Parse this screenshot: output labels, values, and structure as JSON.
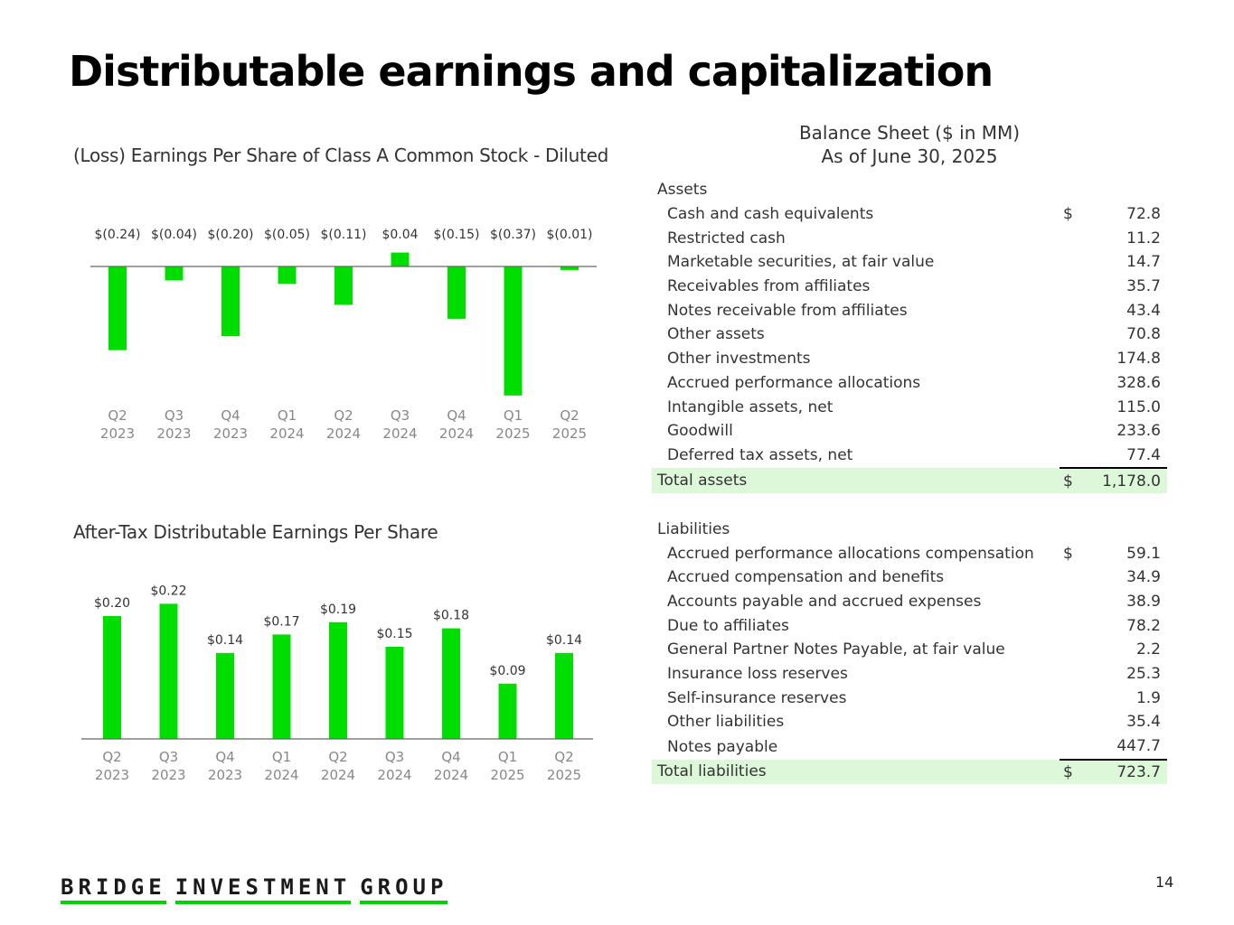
{
  "page": {
    "title": "Distributable earnings and capitalization",
    "page_number": "14",
    "logo_words": [
      "BRIDGE",
      "INVESTMENT",
      "GROUP"
    ]
  },
  "colors": {
    "bar": "#00dd00",
    "axis": "#666666",
    "total_bg": "#ddf7d9"
  },
  "chart_data": [
    {
      "type": "bar",
      "title": "(Loss) Earnings Per Share of Class A Common Stock - Diluted",
      "categories": [
        [
          "Q2",
          "2023"
        ],
        [
          "Q3",
          "2023"
        ],
        [
          "Q4",
          "2023"
        ],
        [
          "Q1",
          "2024"
        ],
        [
          "Q2",
          "2024"
        ],
        [
          "Q3",
          "2024"
        ],
        [
          "Q4",
          "2024"
        ],
        [
          "Q1",
          "2025"
        ],
        [
          "Q2",
          "2025"
        ]
      ],
      "values": [
        -0.24,
        -0.04,
        -0.2,
        -0.05,
        -0.11,
        0.04,
        -0.15,
        -0.37,
        -0.01
      ],
      "labels": [
        "$(0.24)",
        "$(0.04)",
        "$(0.20)",
        "$(0.05)",
        "$(0.11)",
        "$0.04",
        "$(0.15)",
        "$(0.37)",
        "$(0.01)"
      ],
      "ylim": [
        -0.37,
        0.04
      ],
      "xlabel": "",
      "ylabel": ""
    },
    {
      "type": "bar",
      "title": "After-Tax Distributable Earnings Per Share",
      "categories": [
        [
          "Q2",
          "2023"
        ],
        [
          "Q3",
          "2023"
        ],
        [
          "Q4",
          "2023"
        ],
        [
          "Q1",
          "2024"
        ],
        [
          "Q2",
          "2024"
        ],
        [
          "Q3",
          "2024"
        ],
        [
          "Q4",
          "2024"
        ],
        [
          "Q1",
          "2025"
        ],
        [
          "Q2",
          "2025"
        ]
      ],
      "values": [
        0.2,
        0.22,
        0.14,
        0.17,
        0.19,
        0.15,
        0.18,
        0.09,
        0.14
      ],
      "labels": [
        "$0.20",
        "$0.22",
        "$0.14",
        "$0.17",
        "$0.19",
        "$0.15",
        "$0.18",
        "$0.09",
        "$0.14"
      ],
      "ylim": [
        0,
        0.22
      ],
      "xlabel": "",
      "ylabel": ""
    }
  ],
  "balance_sheet": {
    "title": "Balance Sheet ($ in MM)",
    "subtitle": "As of June 30, 2025",
    "assets": {
      "heading": "Assets",
      "rows": [
        {
          "label": "Cash and cash equivalents",
          "currency": "$",
          "value": "72.8"
        },
        {
          "label": "Restricted cash",
          "currency": "",
          "value": "11.2"
        },
        {
          "label": "Marketable securities, at fair value",
          "currency": "",
          "value": "14.7"
        },
        {
          "label": "Receivables from affiliates",
          "currency": "",
          "value": "35.7"
        },
        {
          "label": "Notes receivable from affiliates",
          "currency": "",
          "value": "43.4"
        },
        {
          "label": "Other assets",
          "currency": "",
          "value": "70.8"
        },
        {
          "label": "Other investments",
          "currency": "",
          "value": "174.8"
        },
        {
          "label": "Accrued performance allocations",
          "currency": "",
          "value": "328.6"
        },
        {
          "label": "Intangible assets, net",
          "currency": "",
          "value": "115.0"
        },
        {
          "label": "Goodwill",
          "currency": "",
          "value": "233.6"
        },
        {
          "label": "Deferred tax assets, net",
          "currency": "",
          "value": "77.4"
        }
      ],
      "total": {
        "label": "Total assets",
        "currency": "$",
        "value": "1,178.0"
      }
    },
    "liabilities": {
      "heading": "Liabilities",
      "rows": [
        {
          "label": "Accrued performance allocations compensation",
          "currency": "$",
          "value": "59.1"
        },
        {
          "label": "Accrued compensation and benefits",
          "currency": "",
          "value": "34.9"
        },
        {
          "label": "Accounts payable and accrued expenses",
          "currency": "",
          "value": "38.9"
        },
        {
          "label": "Due to affiliates",
          "currency": "",
          "value": "78.2"
        },
        {
          "label": "General Partner Notes Payable, at fair value",
          "currency": "",
          "value": "2.2"
        },
        {
          "label": "Insurance loss reserves",
          "currency": "",
          "value": "25.3"
        },
        {
          "label": "Self-insurance reserves",
          "currency": "",
          "value": "1.9"
        },
        {
          "label": "Other liabilities",
          "currency": "",
          "value": "35.4"
        },
        {
          "label": "Notes payable",
          "currency": "",
          "value": "447.7"
        }
      ],
      "total": {
        "label": "Total liabilities",
        "currency": "$",
        "value": "723.7"
      }
    }
  }
}
